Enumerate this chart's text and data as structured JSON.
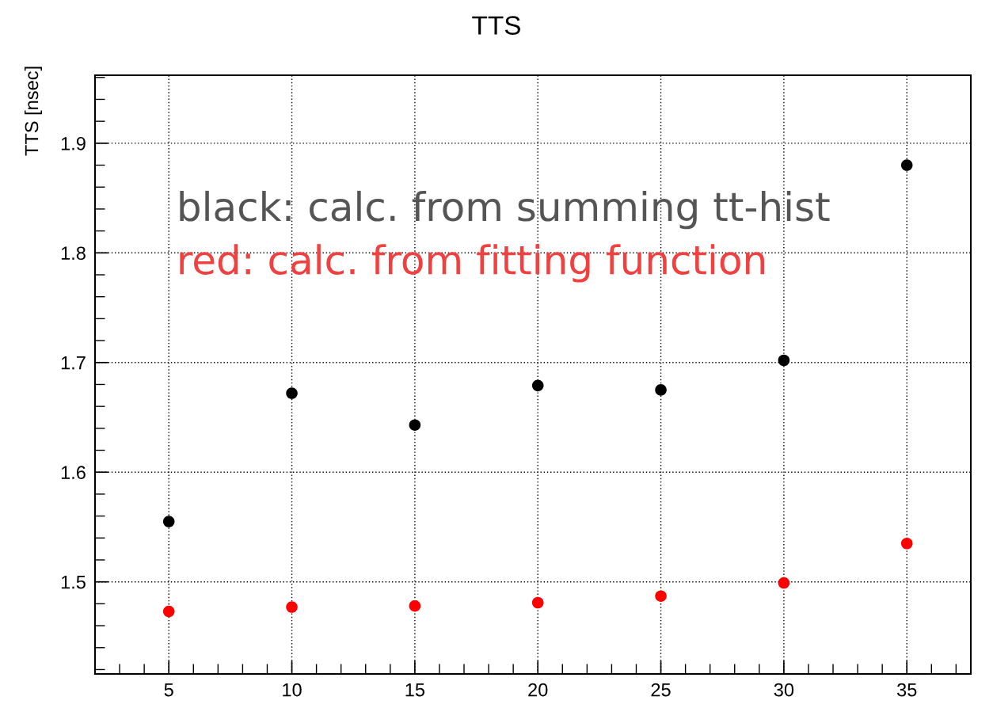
{
  "chart_data": {
    "type": "scatter",
    "title": "TTS",
    "ylabel": "TTS [nsec]",
    "x": [
      5,
      10,
      15,
      20,
      25,
      30,
      35
    ],
    "series": [
      {
        "color": "#000000",
        "values": [
          1.555,
          1.672,
          1.643,
          1.679,
          1.675,
          1.702,
          1.88
        ]
      },
      {
        "color": "#ff0000",
        "values": [
          1.473,
          1.477,
          1.478,
          1.481,
          1.487,
          1.499,
          1.535
        ]
      }
    ],
    "xlim": [
      2.0,
      37.6
    ],
    "ylim": [
      1.416,
      1.962
    ],
    "xticks": [
      5,
      10,
      15,
      20,
      25,
      30,
      35
    ],
    "yticks": [
      1.5,
      1.6,
      1.7,
      1.8,
      1.9
    ],
    "grid": true,
    "marker": "circle",
    "annotations": [
      "black: calc. from summing tt-hist",
      "red: calc. from fitting function"
    ]
  }
}
